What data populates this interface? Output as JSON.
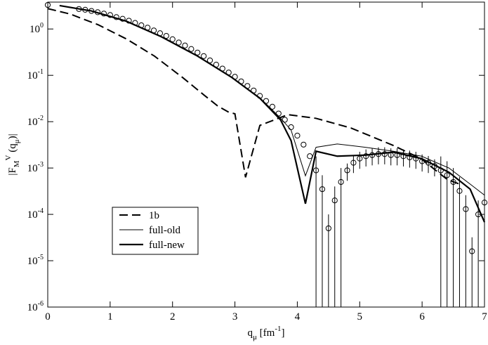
{
  "chart_data": {
    "type": "line",
    "log_y": true,
    "x_label": [
      {
        "text": "q"
      },
      {
        "text": "μ",
        "shift": "sub"
      },
      {
        "text": " [fm"
      },
      {
        "text": "-1",
        "shift": "sup"
      },
      {
        "text": "]"
      }
    ],
    "y_label": [
      {
        "text": "|F"
      },
      {
        "text": "M",
        "shift": "sub"
      },
      {
        "text": "V",
        "shift": "sup"
      },
      {
        "text": " (q"
      },
      {
        "text": "μ",
        "shift": "sub"
      },
      {
        "text": ")|"
      }
    ],
    "xlim": [
      0,
      7
    ],
    "xticks": [
      0,
      1,
      2,
      3,
      4,
      5,
      6,
      7
    ],
    "ylim": [
      1e-06,
      3.8
    ],
    "yticks": [
      {
        "value": 1e-06,
        "label": "10",
        "exponent": "-6"
      },
      {
        "value": 1e-05,
        "label": "10",
        "exponent": "-5"
      },
      {
        "value": 0.0001,
        "label": "10",
        "exponent": "-4"
      },
      {
        "value": 0.001,
        "label": "10",
        "exponent": "-3"
      },
      {
        "value": 0.01,
        "label": "10",
        "exponent": "-2"
      },
      {
        "value": 0.1,
        "label": "10",
        "exponent": "-1"
      },
      {
        "value": 1,
        "label": "10",
        "exponent": "0"
      }
    ],
    "legend": "lower-left",
    "series": [
      {
        "name": "1b",
        "color": "#000000",
        "dash": true,
        "line_width": 2,
        "x": [
          0,
          0.36,
          0.81,
          1.26,
          1.71,
          2.16,
          2.5,
          2.72,
          2.9,
          3.0,
          3.17,
          3.4,
          3.85,
          4.3,
          4.86,
          5.53,
          5.98,
          6.4,
          6.6
        ],
        "values": [
          2.75,
          2.1,
          1.23,
          0.61,
          0.26,
          0.09,
          0.038,
          0.022,
          0.016,
          0.0148,
          0.00063,
          0.0083,
          0.0142,
          0.0118,
          0.0073,
          0.0031,
          0.0016,
          0.00057,
          0.00045
        ]
      },
      {
        "name": "full-old",
        "color": "#000000",
        "dash": false,
        "line_width": 1,
        "x": [
          0.19,
          0.7,
          1.26,
          1.82,
          2.38,
          2.95,
          3.4,
          3.73,
          3.9,
          4.13,
          4.3,
          4.64,
          5.09,
          5.54,
          5.99,
          6.43,
          6.77,
          7.0
        ],
        "values": [
          3.2,
          2.45,
          1.47,
          0.68,
          0.27,
          0.09,
          0.033,
          0.012,
          0.0066,
          0.00068,
          0.0028,
          0.0033,
          0.0028,
          0.0023,
          0.0018,
          0.001,
          0.00045,
          0.00026
        ]
      },
      {
        "name": "full-new",
        "color": "#000000",
        "dash": false,
        "line_width": 2.2,
        "x": [
          0.19,
          0.7,
          1.26,
          1.82,
          2.38,
          2.95,
          3.4,
          3.73,
          3.9,
          4.13,
          4.3,
          4.64,
          5.09,
          5.54,
          5.99,
          6.43,
          6.77,
          7.0
        ],
        "values": [
          3.2,
          2.45,
          1.47,
          0.68,
          0.27,
          0.09,
          0.032,
          0.011,
          0.0039,
          0.00017,
          0.0023,
          0.0018,
          0.0019,
          0.0022,
          0.0016,
          0.00081,
          0.00035,
          6.8e-05
        ]
      }
    ],
    "data_points": {
      "color": "#000000",
      "x": [
        0,
        0.5,
        0.6,
        0.7,
        0.8,
        0.9,
        1.0,
        1.1,
        1.2,
        1.3,
        1.4,
        1.5,
        1.6,
        1.7,
        1.8,
        1.9,
        2.0,
        2.1,
        2.2,
        2.3,
        2.4,
        2.5,
        2.6,
        2.7,
        2.8,
        2.9,
        3.0,
        3.1,
        3.2,
        3.3,
        3.4,
        3.5,
        3.6,
        3.7,
        3.8,
        3.9,
        4.0,
        4.1,
        4.2,
        4.3,
        4.4,
        4.5,
        4.6,
        4.7,
        4.8,
        4.9,
        5.0,
        5.1,
        5.2,
        5.3,
        5.4,
        5.5,
        5.6,
        5.7,
        5.8,
        5.9,
        6.0,
        6.1,
        6.2,
        6.3,
        6.4,
        6.5,
        6.6,
        6.7,
        6.8,
        6.9,
        7.0
      ],
      "values": [
        3.3,
        2.7,
        2.6,
        2.45,
        2.3,
        2.15,
        2.0,
        1.8,
        1.66,
        1.51,
        1.35,
        1.2,
        1.07,
        0.93,
        0.81,
        0.71,
        0.6,
        0.51,
        0.44,
        0.37,
        0.31,
        0.26,
        0.21,
        0.17,
        0.14,
        0.115,
        0.093,
        0.074,
        0.059,
        0.047,
        0.036,
        0.028,
        0.021,
        0.015,
        0.011,
        0.0076,
        0.005,
        0.0032,
        0.0018,
        0.00089,
        0.00035,
        5e-05,
        0.0002,
        0.0005,
        0.00089,
        0.0013,
        0.0016,
        0.0018,
        0.0019,
        0.002,
        0.002,
        0.0019,
        0.0019,
        0.0018,
        0.0017,
        0.0016,
        0.0014,
        0.0013,
        0.0011,
        0.00089,
        0.0007,
        0.0005,
        0.00032,
        0.00013,
        1.6e-05,
        0.0001,
        0.00018
      ],
      "errors": [
        0,
        0,
        0,
        0,
        0,
        0,
        0,
        0,
        0,
        0,
        0,
        0,
        0,
        0,
        0,
        0,
        0,
        0,
        0,
        0,
        0,
        0,
        0,
        0,
        0,
        0,
        0,
        0,
        0,
        0,
        0,
        0,
        0,
        0,
        0,
        0,
        0,
        0,
        0,
        0.00089,
        0.00035,
        5e-05,
        0.0002,
        0.0005,
        0.00036,
        0.00052,
        0.00064,
        0.00072,
        0.00076,
        0.0008,
        0.0008,
        0.00076,
        0.00076,
        0.00072,
        0.00068,
        0.00064,
        0.00056,
        0.00052,
        0.00044,
        0.00089,
        0.0007,
        0.0005,
        0.00032,
        0.00013,
        1.6e-05,
        0.0001,
        0.00018
      ]
    }
  }
}
